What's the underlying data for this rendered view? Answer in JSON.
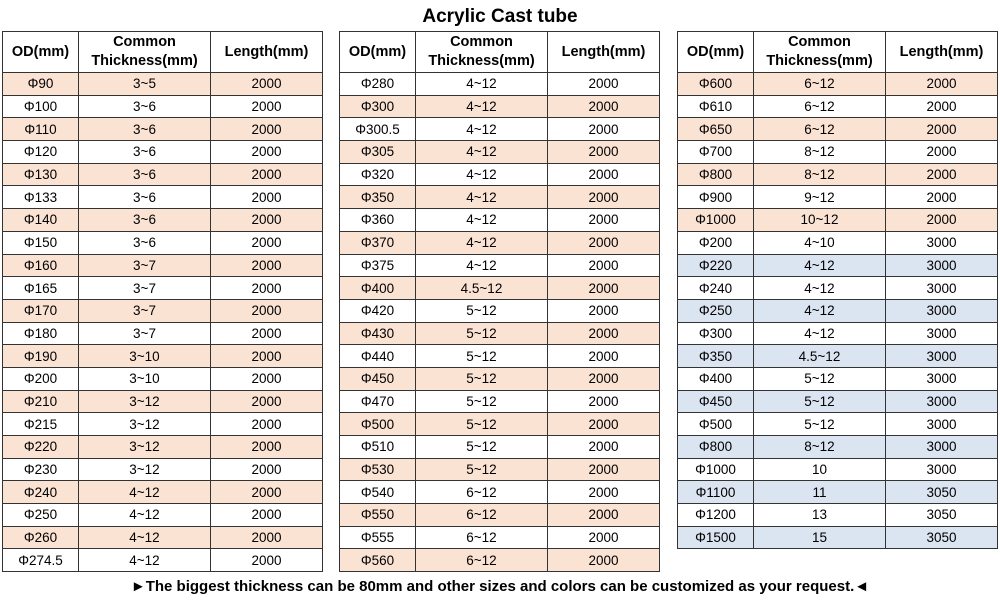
{
  "title": "Acrylic Cast tube",
  "headers": {
    "od": "OD(mm)",
    "thickness_line1": "Common",
    "thickness_line2": "Thickness(mm)",
    "length": "Length(mm)"
  },
  "colors": {
    "peach": "#fbe3d4",
    "blue": "#dbe4f1"
  },
  "tables": [
    {
      "rows": [
        {
          "od": "Φ90",
          "thickness": "3~5",
          "length": "2000",
          "hl": "peach"
        },
        {
          "od": "Φ100",
          "thickness": "3~6",
          "length": "2000",
          "hl": ""
        },
        {
          "od": "Φ110",
          "thickness": "3~6",
          "length": "2000",
          "hl": "peach"
        },
        {
          "od": "Φ120",
          "thickness": "3~6",
          "length": "2000",
          "hl": ""
        },
        {
          "od": "Φ130",
          "thickness": "3~6",
          "length": "2000",
          "hl": "peach"
        },
        {
          "od": "Φ133",
          "thickness": "3~6",
          "length": "2000",
          "hl": ""
        },
        {
          "od": "Φ140",
          "thickness": "3~6",
          "length": "2000",
          "hl": "peach"
        },
        {
          "od": "Φ150",
          "thickness": "3~6",
          "length": "2000",
          "hl": ""
        },
        {
          "od": "Φ160",
          "thickness": "3~7",
          "length": "2000",
          "hl": "peach"
        },
        {
          "od": "Φ165",
          "thickness": "3~7",
          "length": "2000",
          "hl": ""
        },
        {
          "od": "Φ170",
          "thickness": "3~7",
          "length": "2000",
          "hl": "peach"
        },
        {
          "od": "Φ180",
          "thickness": "3~7",
          "length": "2000",
          "hl": ""
        },
        {
          "od": "Φ190",
          "thickness": "3~10",
          "length": "2000",
          "hl": "peach"
        },
        {
          "od": "Φ200",
          "thickness": "3~10",
          "length": "2000",
          "hl": ""
        },
        {
          "od": "Φ210",
          "thickness": "3~12",
          "length": "2000",
          "hl": "peach"
        },
        {
          "od": "Φ215",
          "thickness": "3~12",
          "length": "2000",
          "hl": ""
        },
        {
          "od": "Φ220",
          "thickness": "3~12",
          "length": "2000",
          "hl": "peach"
        },
        {
          "od": "Φ230",
          "thickness": "3~12",
          "length": "2000",
          "hl": ""
        },
        {
          "od": "Φ240",
          "thickness": "4~12",
          "length": "2000",
          "hl": "peach"
        },
        {
          "od": "Φ250",
          "thickness": "4~12",
          "length": "2000",
          "hl": ""
        },
        {
          "od": "Φ260",
          "thickness": "4~12",
          "length": "2000",
          "hl": "peach"
        },
        {
          "od": "Φ274.5",
          "thickness": "4~12",
          "length": "2000",
          "hl": ""
        }
      ]
    },
    {
      "rows": [
        {
          "od": "Φ280",
          "thickness": "4~12",
          "length": "2000",
          "hl": ""
        },
        {
          "od": "Φ300",
          "thickness": "4~12",
          "length": "2000",
          "hl": "peach"
        },
        {
          "od": "Φ300.5",
          "thickness": "4~12",
          "length": "2000",
          "hl": ""
        },
        {
          "od": "Φ305",
          "thickness": "4~12",
          "length": "2000",
          "hl": "peach"
        },
        {
          "od": "Φ320",
          "thickness": "4~12",
          "length": "2000",
          "hl": ""
        },
        {
          "od": "Φ350",
          "thickness": "4~12",
          "length": "2000",
          "hl": "peach"
        },
        {
          "od": "Φ360",
          "thickness": "4~12",
          "length": "2000",
          "hl": ""
        },
        {
          "od": "Φ370",
          "thickness": "4~12",
          "length": "2000",
          "hl": "peach"
        },
        {
          "od": "Φ375",
          "thickness": "4~12",
          "length": "2000",
          "hl": ""
        },
        {
          "od": "Φ400",
          "thickness": "4.5~12",
          "length": "2000",
          "hl": "peach"
        },
        {
          "od": "Φ420",
          "thickness": "5~12",
          "length": "2000",
          "hl": ""
        },
        {
          "od": "Φ430",
          "thickness": "5~12",
          "length": "2000",
          "hl": "peach"
        },
        {
          "od": "Φ440",
          "thickness": "5~12",
          "length": "2000",
          "hl": ""
        },
        {
          "od": "Φ450",
          "thickness": "5~12",
          "length": "2000",
          "hl": "peach"
        },
        {
          "od": "Φ470",
          "thickness": "5~12",
          "length": "2000",
          "hl": ""
        },
        {
          "od": "Φ500",
          "thickness": "5~12",
          "length": "2000",
          "hl": "peach"
        },
        {
          "od": "Φ510",
          "thickness": "5~12",
          "length": "2000",
          "hl": ""
        },
        {
          "od": "Φ530",
          "thickness": "5~12",
          "length": "2000",
          "hl": "peach"
        },
        {
          "od": "Φ540",
          "thickness": "6~12",
          "length": "2000",
          "hl": ""
        },
        {
          "od": "Φ550",
          "thickness": "6~12",
          "length": "2000",
          "hl": "peach"
        },
        {
          "od": "Φ555",
          "thickness": "6~12",
          "length": "2000",
          "hl": ""
        },
        {
          "od": "Φ560",
          "thickness": "6~12",
          "length": "2000",
          "hl": "peach"
        }
      ]
    },
    {
      "rows": [
        {
          "od": "Φ600",
          "thickness": "6~12",
          "length": "2000",
          "hl": "peach"
        },
        {
          "od": "Φ610",
          "thickness": "6~12",
          "length": "2000",
          "hl": ""
        },
        {
          "od": "Φ650",
          "thickness": "6~12",
          "length": "2000",
          "hl": "peach"
        },
        {
          "od": "Φ700",
          "thickness": "8~12",
          "length": "2000",
          "hl": ""
        },
        {
          "od": "Φ800",
          "thickness": "8~12",
          "length": "2000",
          "hl": "peach"
        },
        {
          "od": "Φ900",
          "thickness": "9~12",
          "length": "2000",
          "hl": ""
        },
        {
          "od": "Φ1000",
          "thickness": "10~12",
          "length": "2000",
          "hl": "peach"
        },
        {
          "od": "Φ200",
          "thickness": "4~10",
          "length": "3000",
          "hl": ""
        },
        {
          "od": "Φ220",
          "thickness": "4~12",
          "length": "3000",
          "hl": "blue"
        },
        {
          "od": "Φ240",
          "thickness": "4~12",
          "length": "3000",
          "hl": ""
        },
        {
          "od": "Φ250",
          "thickness": "4~12",
          "length": "3000",
          "hl": "blue"
        },
        {
          "od": "Φ300",
          "thickness": "4~12",
          "length": "3000",
          "hl": ""
        },
        {
          "od": "Φ350",
          "thickness": "4.5~12",
          "length": "3000",
          "hl": "blue"
        },
        {
          "od": "Φ400",
          "thickness": "5~12",
          "length": "3000",
          "hl": ""
        },
        {
          "od": "Φ450",
          "thickness": "5~12",
          "length": "3000",
          "hl": "blue"
        },
        {
          "od": "Φ500",
          "thickness": "5~12",
          "length": "3000",
          "hl": ""
        },
        {
          "od": "Φ800",
          "thickness": "8~12",
          "length": "3000",
          "hl": "blue"
        },
        {
          "od": "Φ1000",
          "thickness": "10",
          "length": "3000",
          "hl": ""
        },
        {
          "od": "Φ1100",
          "thickness": "11",
          "length": "3050",
          "hl": "blue"
        },
        {
          "od": "Φ1200",
          "thickness": "13",
          "length": "3050",
          "hl": ""
        },
        {
          "od": "Φ1500",
          "thickness": "15",
          "length": "3050",
          "hl": "blue"
        }
      ]
    }
  ],
  "footer": "►The biggest thickness can be 80mm and other sizes and colors can be customized as your request.◄"
}
